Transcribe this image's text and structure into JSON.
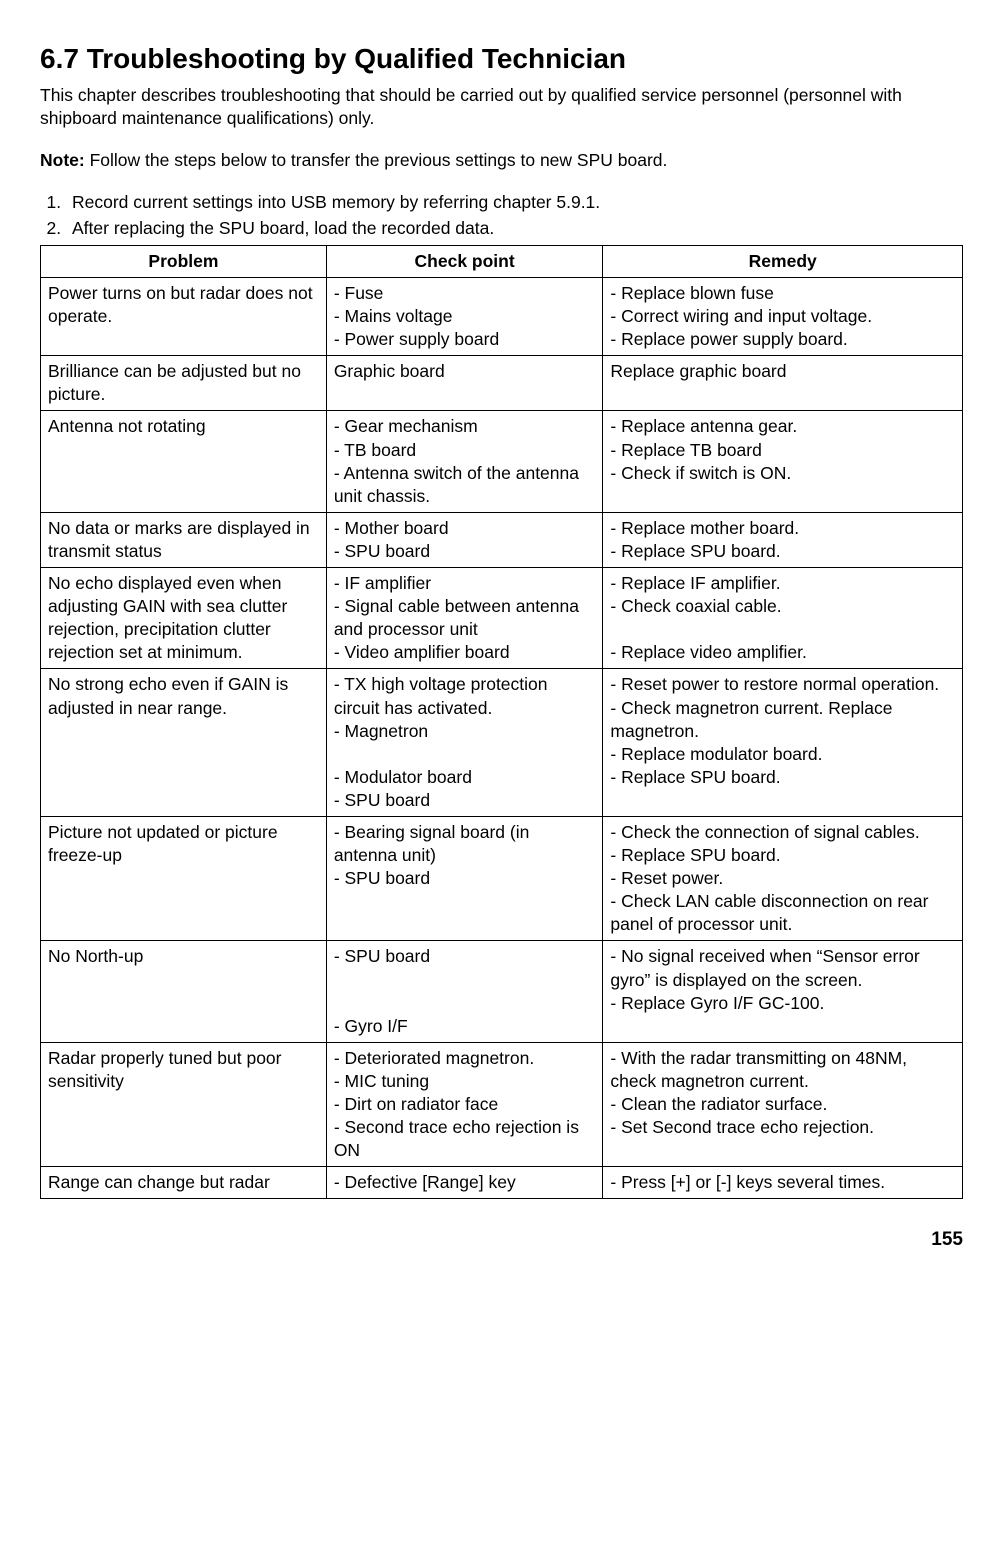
{
  "heading": "6.7  Troubleshooting by Qualified Technician",
  "intro": "This chapter describes troubleshooting that should be carried out by qualified service personnel (personnel with shipboard maintenance qualifications) only.",
  "note_label": "Note:",
  "note_text": " Follow the steps below to transfer the previous settings to new SPU board.",
  "steps": [
    "Record current settings into USB memory by referring chapter 5.9.1.",
    "After replacing the SPU board, load the recorded data."
  ],
  "table": {
    "headers": [
      "Problem",
      "Check point",
      "Remedy"
    ],
    "rows": [
      {
        "problem": "Power turns on but radar does not operate.",
        "checks": [
          "- Fuse",
          "- Mains voltage",
          "- Power supply board"
        ],
        "remedies": [
          "- Replace blown fuse",
          "- Correct wiring and input voltage.",
          "- Replace power supply board."
        ]
      },
      {
        "problem": "Brilliance can be adjusted but no picture.",
        "checks": [
          "Graphic board"
        ],
        "remedies": [
          "Replace graphic board"
        ]
      },
      {
        "problem": "Antenna not rotating",
        "checks": [
          "- Gear mechanism",
          "- TB board",
          "- Antenna switch of the antenna unit chassis."
        ],
        "remedies": [
          "- Replace antenna gear.",
          "- Replace TB board",
          "- Check if switch is ON."
        ]
      },
      {
        "problem": "No data or marks are displayed in transmit status",
        "checks": [
          "- Mother board",
          "- SPU board"
        ],
        "remedies": [
          "- Replace mother board.",
          "- Replace SPU board."
        ]
      },
      {
        "problem": "No echo displayed even when adjusting GAIN with sea clutter rejection, precipitation clutter rejection set at minimum.",
        "checks": [
          "- IF amplifier",
          "- Signal cable between antenna and processor unit",
          "- Video amplifier board"
        ],
        "remedies": [
          "- Replace IF amplifier.",
          "- Check coaxial cable.",
          " ",
          "- Replace video amplifier."
        ]
      },
      {
        "problem": "No strong echo even if GAIN is adjusted in near range.",
        "checks": [
          "- TX high voltage protection circuit has activated.",
          "- Magnetron",
          " ",
          "- Modulator board",
          "- SPU board"
        ],
        "remedies": [
          "- Reset power to restore normal operation.",
          "- Check magnetron current. Replace magnetron.",
          "- Replace modulator board.",
          "- Replace SPU board."
        ]
      },
      {
        "problem": "Picture not updated or picture freeze-up",
        "checks": [
          "- Bearing signal board (in antenna unit)",
          "- SPU board"
        ],
        "remedies": [
          "- Check the connection of signal cables.",
          "- Replace SPU board.",
          "- Reset power.",
          "- Check LAN cable disconnection on rear panel of processor unit."
        ]
      },
      {
        "problem": "No North-up",
        "checks": [
          "- SPU board",
          " ",
          " ",
          "- Gyro I/F"
        ],
        "remedies": [
          "- No signal received when “Sensor error gyro” is displayed on the screen.",
          "- Replace Gyro I/F GC-100."
        ]
      },
      {
        "problem": "Radar properly tuned but poor sensitivity",
        "checks": [
          "- Deteriorated magnetron.",
          "- MIC tuning",
          "- Dirt on radiator face",
          "- Second trace echo rejection is ON"
        ],
        "remedies": [
          "- With the radar transmitting on 48NM, check magnetron current.",
          "- Clean the radiator surface.",
          "- Set Second trace echo rejection."
        ]
      },
      {
        "problem": "Range can change but radar",
        "checks": [
          "- Defective [Range] key"
        ],
        "remedies": [
          "- Press [+] or [-] keys several times."
        ]
      }
    ]
  },
  "page_number": "155"
}
